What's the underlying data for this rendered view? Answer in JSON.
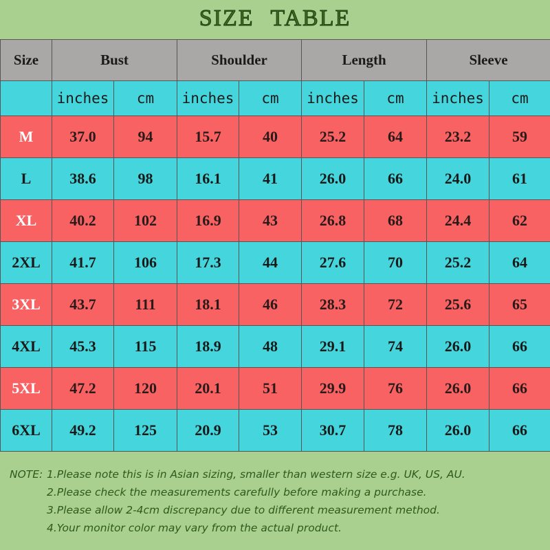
{
  "title": "SIZE TABLE",
  "table": {
    "header": [
      "Size",
      "Bust",
      "Shoulder",
      "Length",
      "Sleeve"
    ],
    "units": [
      "inches",
      "cm",
      "inches",
      "cm",
      "inches",
      "cm",
      "inches",
      "cm"
    ],
    "rows": [
      [
        "M",
        "37.0",
        "94",
        "15.7",
        "40",
        "25.2",
        "64",
        "23.2",
        "59"
      ],
      [
        "L",
        "38.6",
        "98",
        "16.1",
        "41",
        "26.0",
        "66",
        "24.0",
        "61"
      ],
      [
        "XL",
        "40.2",
        "102",
        "16.9",
        "43",
        "26.8",
        "68",
        "24.4",
        "62"
      ],
      [
        "2XL",
        "41.7",
        "106",
        "17.3",
        "44",
        "27.6",
        "70",
        "25.2",
        "64"
      ],
      [
        "3XL",
        "43.7",
        "111",
        "18.1",
        "46",
        "28.3",
        "72",
        "25.6",
        "65"
      ],
      [
        "4XL",
        "45.3",
        "115",
        "18.9",
        "48",
        "29.1",
        "74",
        "26.0",
        "66"
      ],
      [
        "5XL",
        "47.2",
        "120",
        "20.1",
        "51",
        "29.9",
        "76",
        "26.0",
        "66"
      ],
      [
        "6XL",
        "49.2",
        "125",
        "20.9",
        "53",
        "30.7",
        "78",
        "26.0",
        "66"
      ]
    ]
  },
  "notes": {
    "label": "NOTE:",
    "items": [
      "1.Please note this is in Asian sizing, smaller than western size e.g. UK, US, AU.",
      "2.Please check the measurements carefully before making a purchase.",
      "3.Please allow 2-4cm discrepancy due to different measurement method.",
      "4.Your monitor color may vary from the actual product."
    ]
  }
}
